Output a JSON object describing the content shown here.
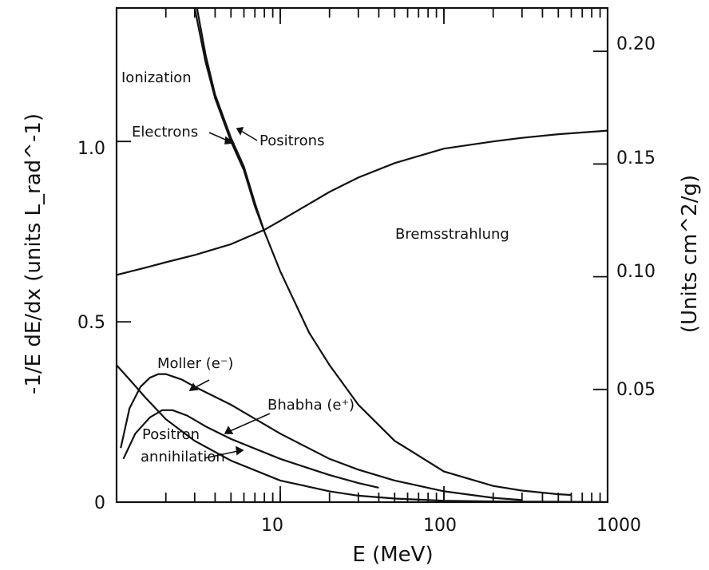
{
  "chart_data": {
    "type": "line",
    "x_scale": "log",
    "xlim": [
      1,
      1000
    ],
    "ylim": [
      0,
      1.37
    ],
    "right_ylim": [
      0,
      0.2192
    ],
    "grid": false,
    "legend": "none",
    "xlabel": "E (MeV)",
    "ylabel": "-1/E dE/dx (units L_rad^-1)",
    "right_ylabel": "(Units cm^2/g)",
    "x_tick_labels": [
      "10",
      "100",
      "1000"
    ],
    "y_tick_labels": [
      "0",
      "0.5",
      "1.0"
    ],
    "right_tick_labels": [
      "0.05",
      "0.10",
      "0.15",
      "0.20"
    ],
    "series": [
      {
        "name": "Ionization (Electrons)",
        "x": [
          3.0,
          3.5,
          4,
          5,
          6,
          7,
          8,
          10,
          15,
          20,
          30,
          50,
          100,
          200,
          300,
          500,
          600
        ],
        "y": [
          1.37,
          1.22,
          1.12,
          1.0,
          0.92,
          0.82,
          0.75,
          0.64,
          0.47,
          0.38,
          0.27,
          0.17,
          0.085,
          0.045,
          0.032,
          0.022,
          0.02
        ]
      },
      {
        "name": "Ionization (Positrons)",
        "x": [
          3.1,
          3.5,
          4,
          5,
          6,
          7,
          8
        ],
        "y": [
          1.37,
          1.24,
          1.13,
          1.01,
          0.93,
          0.83,
          0.75
        ]
      },
      {
        "name": "Bremsstrahlung",
        "x": [
          1,
          1.5,
          2,
          3,
          5,
          8,
          10,
          20,
          30,
          50,
          100,
          200,
          300,
          500,
          1000
        ],
        "y": [
          0.63,
          0.65,
          0.665,
          0.685,
          0.715,
          0.755,
          0.78,
          0.86,
          0.9,
          0.94,
          0.98,
          1.0,
          1.01,
          1.02,
          1.03
        ]
      },
      {
        "name": "Moller (e⁻)",
        "x": [
          1.06,
          1.2,
          1.4,
          1.6,
          1.8,
          2,
          2.5,
          3,
          5,
          10,
          20,
          30,
          50,
          100,
          200,
          300
        ],
        "y": [
          0.15,
          0.26,
          0.32,
          0.345,
          0.355,
          0.355,
          0.34,
          0.32,
          0.27,
          0.19,
          0.12,
          0.09,
          0.06,
          0.03,
          0.012,
          0.006
        ]
      },
      {
        "name": "Bhabha (e⁺)",
        "x": [
          1.1,
          1.3,
          1.6,
          1.9,
          2.2,
          2.7,
          3.5,
          5,
          10,
          20,
          30,
          40
        ],
        "y": [
          0.12,
          0.19,
          0.235,
          0.255,
          0.255,
          0.24,
          0.21,
          0.175,
          0.12,
          0.075,
          0.053,
          0.04
        ]
      },
      {
        "name": "Positron annihilation",
        "x": [
          1.0,
          1.2,
          1.5,
          2,
          3,
          5,
          10,
          20,
          30,
          50,
          100,
          200,
          500,
          1000
        ],
        "y": [
          0.38,
          0.34,
          0.29,
          0.23,
          0.17,
          0.115,
          0.06,
          0.03,
          0.018,
          0.01,
          0.004,
          0.002,
          0.001,
          0.0005
        ]
      }
    ],
    "annotations": [
      "Ionization",
      "Electrons",
      "Positrons",
      "Bremsstrahlung",
      "Moller (e⁻)",
      "Bhabha (e⁺)",
      "Positron",
      "annihilation"
    ]
  }
}
